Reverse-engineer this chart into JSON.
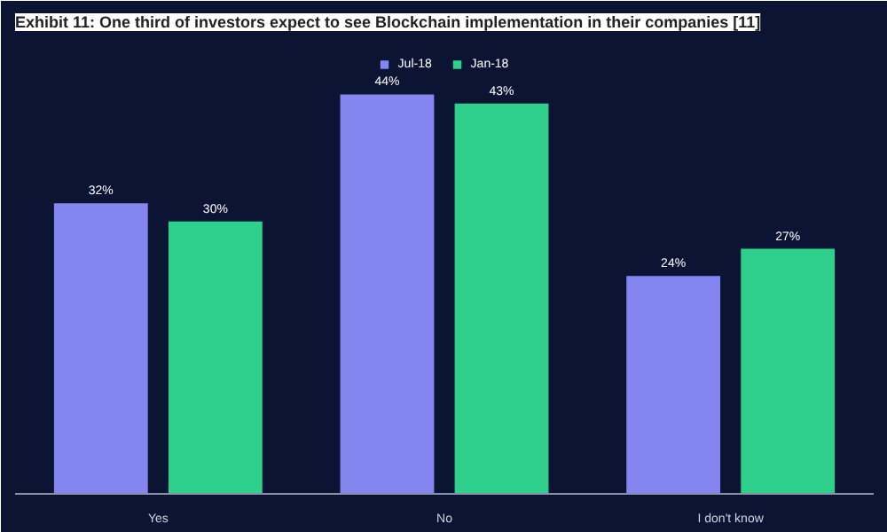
{
  "chart_data": {
    "type": "bar",
    "title": "Exhibit 11: One third of investors expect to see Blockchain implementation in their companies [11]",
    "categories": [
      "Yes",
      "No",
      "I don't know"
    ],
    "series": [
      {
        "name": "Jul-18",
        "color": "#8585f0",
        "values": [
          32,
          44,
          24
        ],
        "value_labels": [
          "32%",
          "44%",
          "24%"
        ]
      },
      {
        "name": "Jan-18",
        "color": "#2fd08c",
        "values": [
          30,
          43,
          27
        ],
        "value_labels": [
          "30%",
          "43%",
          "27%"
        ]
      }
    ],
    "ylim": [
      0,
      50
    ],
    "legend": "top",
    "grid": false,
    "tick_labels": "x"
  }
}
